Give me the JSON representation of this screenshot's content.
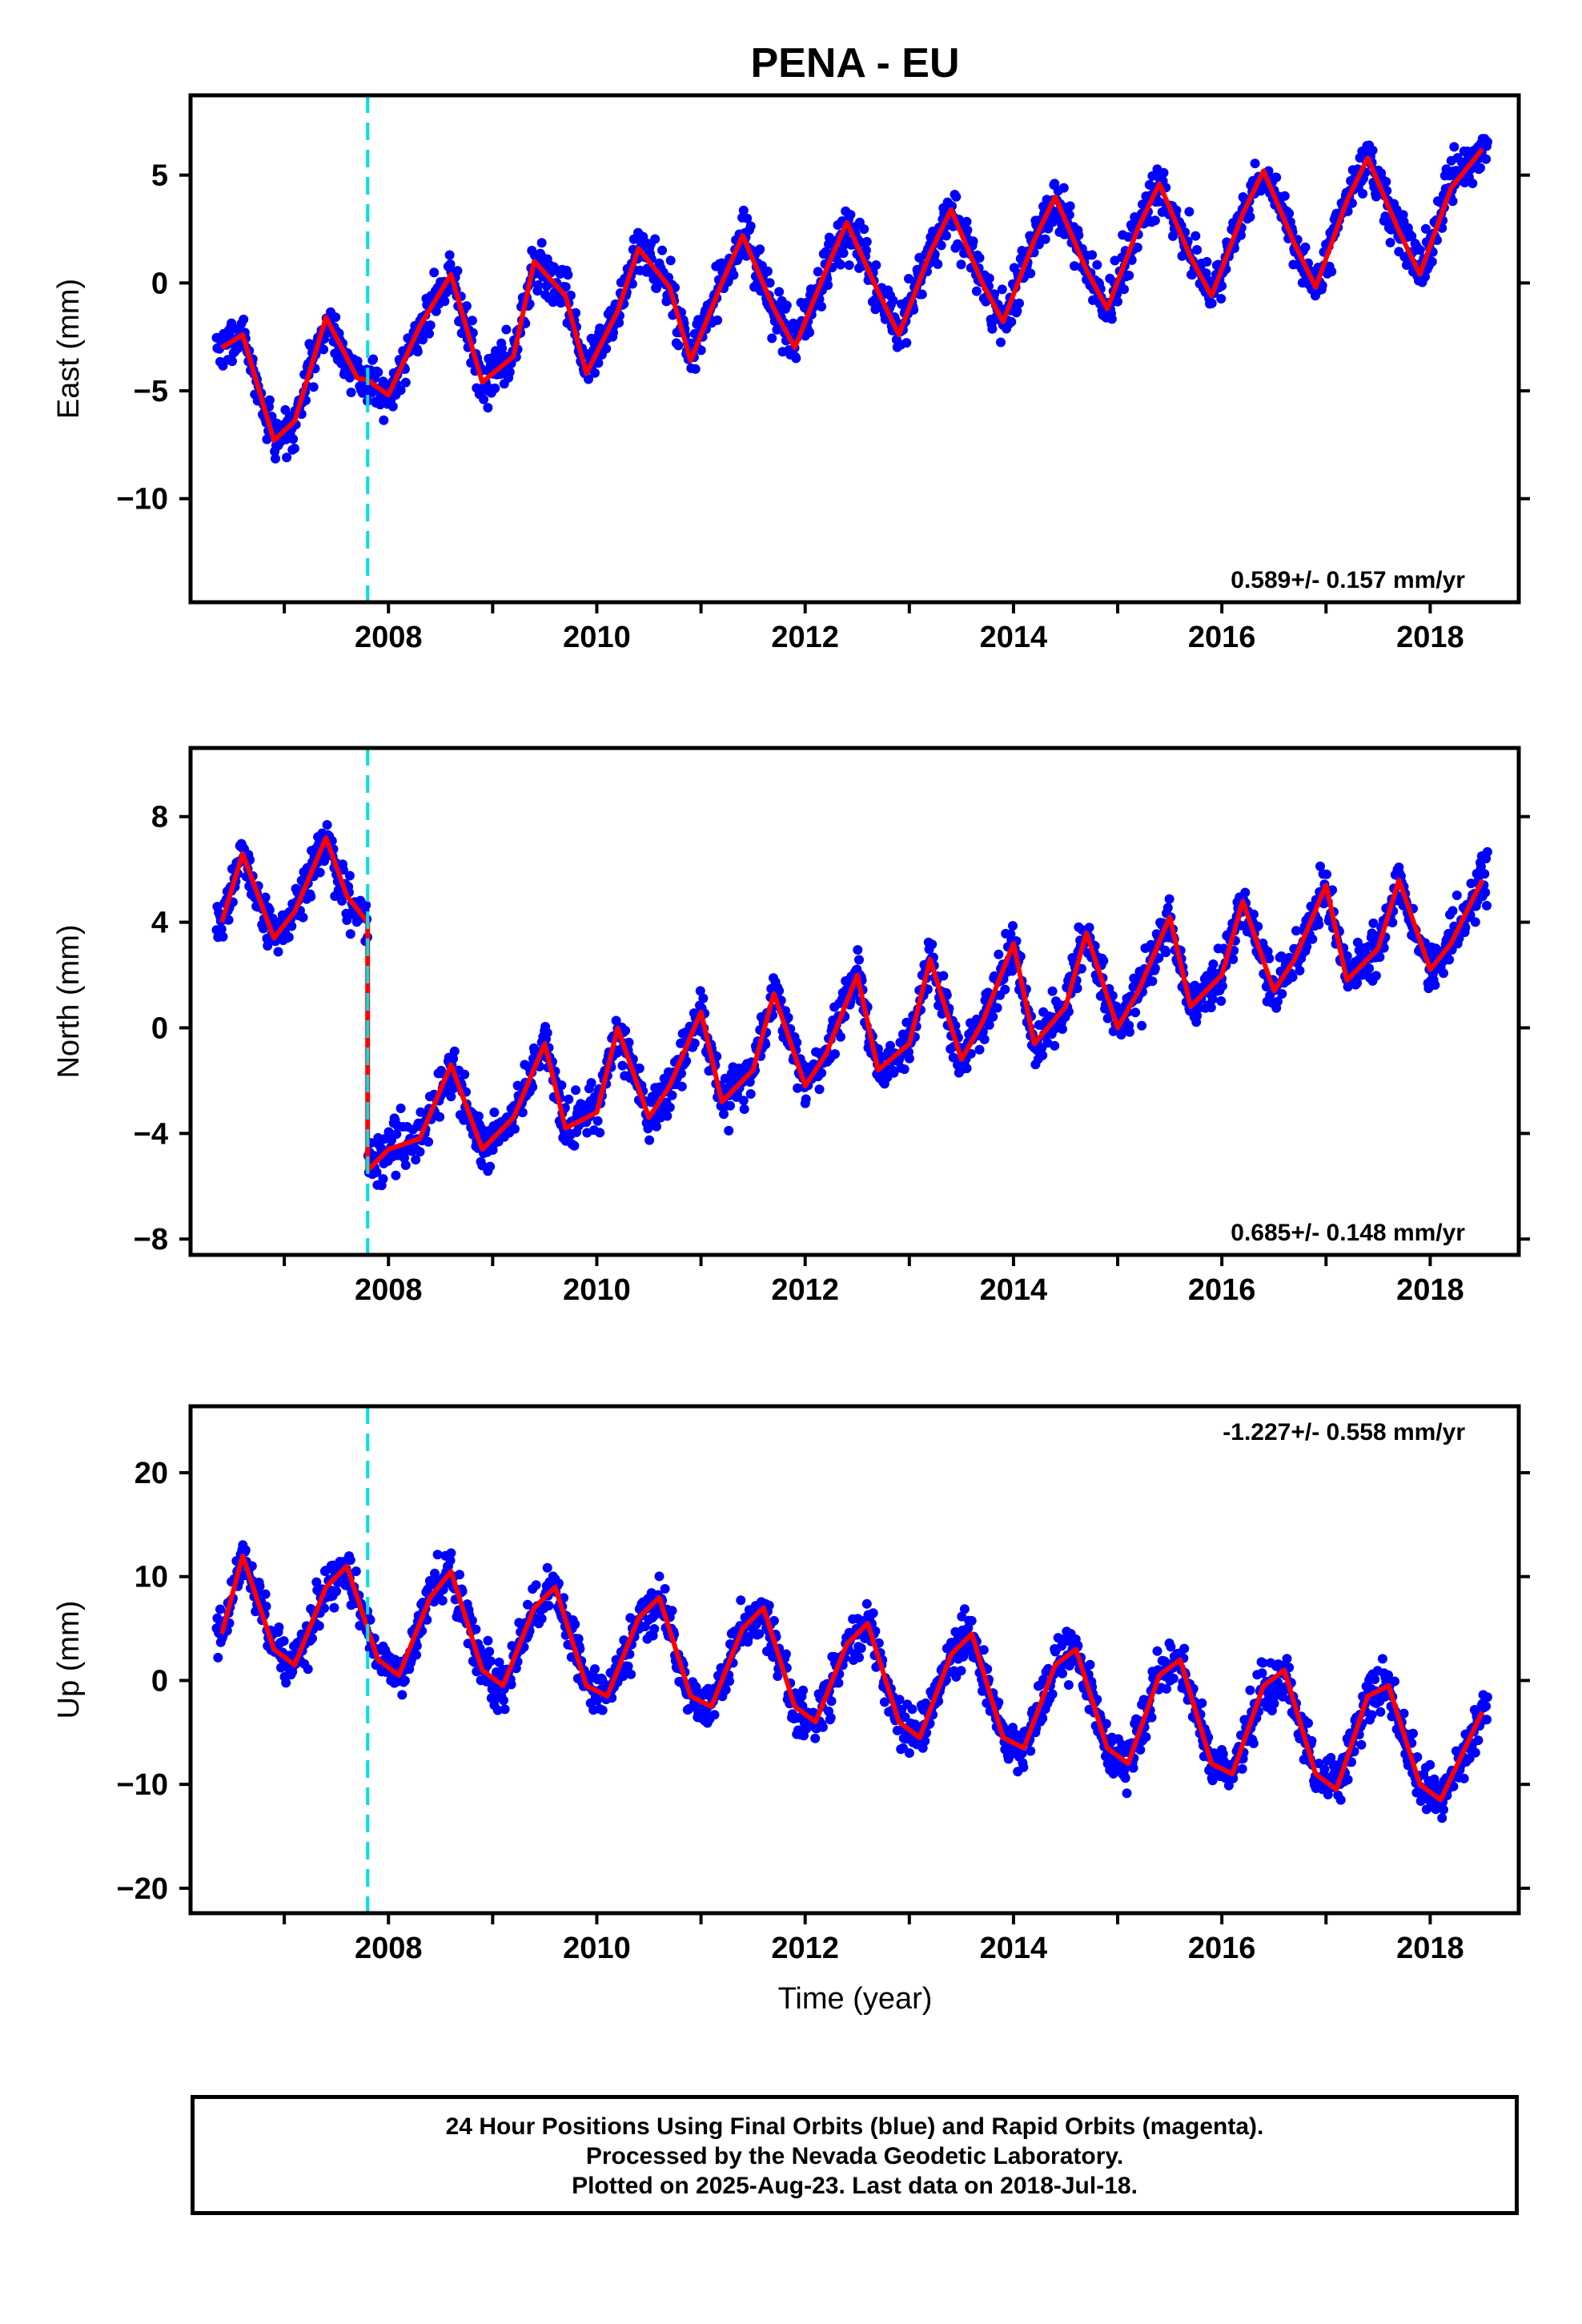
{
  "chart_data": {
    "title": "PENA - EU",
    "xlabel": "Time (year)",
    "x_ticks": [
      2008,
      2010,
      2012,
      2014,
      2016,
      2018
    ],
    "xlim": [
      2006.1,
      2018.85
    ],
    "colors": {
      "observations": "#0000ff",
      "model": "#ff0000",
      "equipment_change": "#00e0e0"
    },
    "equipment_change_year": 2007.8,
    "panels": [
      {
        "name": "east",
        "type": "scatter",
        "ylabel": "East (mm)",
        "ylim": [
          -14.8,
          8.7
        ],
        "y_ticks": [
          5,
          0,
          -5,
          -10
        ],
        "rate_text": "0.589+/- 0.157 mm/yr",
        "rate_position": "bottom-right",
        "model": {
          "trend_mm_per_yr": 0.589,
          "ref_year": 2012,
          "ref_value": -0.3,
          "annual_amp": 2.9,
          "annual_peak": 0.45,
          "semi_amp": 0.3,
          "offset_mm": 0.5
        },
        "series": [
          {
            "name": "fit",
            "x": [
              2006.4,
              2006.6,
              2006.9,
              2007.1,
              2007.4,
              2007.7,
              2007.8,
              2008.0,
              2008.3,
              2008.6,
              2008.9,
              2009.2,
              2009.4,
              2009.7,
              2009.9,
              2010.2,
              2010.4,
              2010.7,
              2010.9,
              2011.2,
              2011.4,
              2011.7,
              2011.9,
              2012.2,
              2012.4,
              2012.7,
              2012.9,
              2013.2,
              2013.4,
              2013.7,
              2013.9,
              2014.2,
              2014.4,
              2014.7,
              2014.9,
              2015.2,
              2015.4,
              2015.7,
              2015.9,
              2016.2,
              2016.4,
              2016.7,
              2016.9,
              2017.2,
              2017.4,
              2017.7,
              2017.9,
              2018.2,
              2018.5
            ],
            "y": [
              -3.0,
              -2.4,
              -7.3,
              -6.4,
              -1.6,
              -4.4,
              -4.5,
              -5.2,
              -2.0,
              0.4,
              -4.6,
              -3.4,
              1.0,
              -0.6,
              -4.2,
              -1.3,
              1.6,
              -0.2,
              -3.6,
              0.0,
              2.2,
              -1.2,
              -3.0,
              0.6,
              2.8,
              -0.4,
              -2.4,
              1.4,
              3.4,
              0.0,
              -1.8,
              2.0,
              4.0,
              0.6,
              -1.2,
              2.6,
              4.6,
              1.2,
              -0.6,
              3.2,
              5.2,
              1.8,
              -0.2,
              3.8,
              5.8,
              2.4,
              0.4,
              4.4,
              6.2
            ]
          }
        ]
      },
      {
        "name": "north",
        "type": "scatter",
        "ylabel": "North (mm)",
        "ylim": [
          -8.6,
          10.6
        ],
        "y_ticks": [
          8,
          4,
          0,
          -4,
          -8
        ],
        "rate_text": "0.685+/- 0.148 mm/yr",
        "rate_position": "bottom-right",
        "model": {
          "trend_mm_per_yr": 0.685,
          "ref_year": 2012,
          "ref_value": -1.2,
          "annual_amp": 1.5,
          "annual_peak": 0.55,
          "semi_amp": 0.5,
          "offset_mm": 9.5
        },
        "series": [
          {
            "name": "fit",
            "x": [
              2006.4,
              2006.6,
              2006.9,
              2007.1,
              2007.4,
              2007.6,
              2007.8,
              2007.8,
              2008.0,
              2008.3,
              2008.6,
              2008.9,
              2009.2,
              2009.5,
              2009.7,
              2010.0,
              2010.2,
              2010.5,
              2010.7,
              2011.0,
              2011.2,
              2011.5,
              2011.7,
              2012.0,
              2012.2,
              2012.5,
              2012.7,
              2013.0,
              2013.2,
              2013.5,
              2013.7,
              2014.0,
              2014.2,
              2014.5,
              2014.7,
              2015.0,
              2015.2,
              2015.5,
              2015.7,
              2016.0,
              2016.2,
              2016.5,
              2016.7,
              2017.0,
              2017.2,
              2017.5,
              2017.7,
              2018.0,
              2018.2,
              2018.5
            ],
            "y": [
              4.0,
              6.6,
              3.4,
              4.4,
              7.2,
              5.0,
              4.0,
              -5.4,
              -4.6,
              -4.2,
              -1.4,
              -4.6,
              -3.4,
              -0.6,
              -3.8,
              -3.2,
              0.0,
              -3.4,
              -2.2,
              0.6,
              -2.8,
              -1.6,
              1.3,
              -2.2,
              -1.0,
              2.0,
              -1.6,
              -0.6,
              2.6,
              -1.2,
              0.2,
              3.2,
              -0.6,
              0.8,
              3.6,
              0.0,
              1.4,
              4.2,
              0.8,
              2.0,
              4.8,
              1.4,
              2.6,
              5.4,
              1.8,
              3.0,
              5.6,
              2.2,
              3.2,
              5.6
            ]
          }
        ]
      },
      {
        "name": "up",
        "type": "scatter",
        "ylabel": "Up (mm)",
        "ylim": [
          -22.4,
          26.4
        ],
        "y_ticks": [
          20,
          10,
          0,
          -10,
          -20
        ],
        "rate_text": "-1.227+/- 0.558 mm/yr",
        "rate_position": "top-right",
        "model": {
          "trend_mm_per_yr": -1.227,
          "ref_year": 2012,
          "ref_value": 1.3,
          "annual_amp": 5.5,
          "annual_peak": 0.6,
          "semi_amp": 0.5,
          "offset_mm": 0
        },
        "series": [
          {
            "name": "fit",
            "x": [
              2006.4,
              2006.6,
              2006.9,
              2007.1,
              2007.4,
              2007.6,
              2007.9,
              2008.1,
              2008.4,
              2008.6,
              2008.9,
              2009.1,
              2009.4,
              2009.6,
              2009.9,
              2010.1,
              2010.4,
              2010.6,
              2010.9,
              2011.1,
              2011.4,
              2011.6,
              2011.9,
              2012.1,
              2012.4,
              2012.6,
              2012.9,
              2013.1,
              2013.4,
              2013.6,
              2013.9,
              2014.1,
              2014.4,
              2014.6,
              2014.9,
              2015.1,
              2015.4,
              2015.6,
              2015.9,
              2016.1,
              2016.4,
              2016.6,
              2016.9,
              2017.1,
              2017.4,
              2017.6,
              2017.9,
              2018.1,
              2018.5
            ],
            "y": [
              4.5,
              12.0,
              3.0,
              1.5,
              9.0,
              11.0,
              2.0,
              0.5,
              8.0,
              10.5,
              1.0,
              -0.5,
              7.0,
              9.0,
              -0.5,
              -1.5,
              6.0,
              8.0,
              -1.5,
              -2.5,
              5.0,
              7.0,
              -2.5,
              -4.0,
              3.5,
              5.5,
              -4.0,
              -5.5,
              2.5,
              4.5,
              -5.5,
              -6.5,
              1.5,
              3.0,
              -6.5,
              -8.0,
              0.5,
              2.0,
              -8.0,
              -9.0,
              -0.5,
              1.0,
              -9.0,
              -10.5,
              -1.5,
              -0.5,
              -10.0,
              -11.5,
              -3.0
            ]
          }
        ]
      }
    ]
  },
  "footer": {
    "line1": "24 Hour Positions Using Final Orbits (blue) and Rapid Orbits (magenta).",
    "line2": "Processed by the Nevada Geodetic Laboratory.",
    "line3": "Plotted on 2025-Aug-23. Last data on 2018-Jul-18."
  }
}
